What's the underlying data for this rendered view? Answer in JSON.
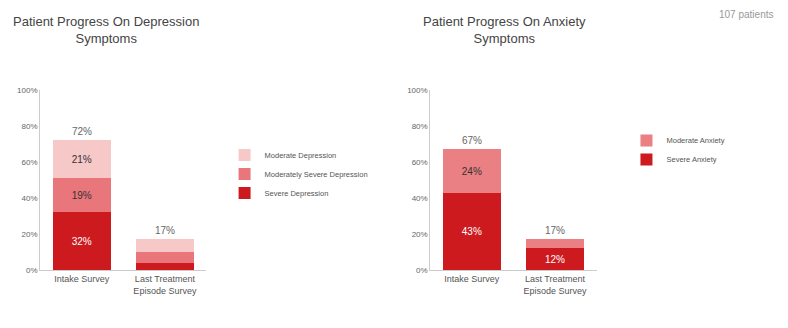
{
  "annotation": "107 patients",
  "chart_data": [
    {
      "type": "bar",
      "title": "Patient Progress On Depression Symptoms",
      "categories": [
        "Intake Survey",
        "Last Treatment Episode Survey"
      ],
      "series": [
        {
          "name": "Severe Depression",
          "color": "#cc1a1f",
          "values": [
            32,
            4
          ],
          "value_labels": [
            "32%",
            null
          ]
        },
        {
          "name": "Moderately Severe Depression",
          "color": "#e8767b",
          "values": [
            19,
            6
          ],
          "value_labels": [
            "19%",
            null
          ]
        },
        {
          "name": "Moderate Depression",
          "color": "#f6c9c8",
          "values": [
            21,
            7
          ],
          "value_labels": [
            "21%",
            null
          ]
        }
      ],
      "totals": [
        72,
        17
      ],
      "total_labels": [
        "72%",
        "17%"
      ],
      "stacked": true,
      "data_labels": true,
      "legend": "right",
      "grid": false,
      "ylim": [
        0,
        100
      ],
      "yticks": [
        {
          "value": 0,
          "label": "0%"
        },
        {
          "value": 20,
          "label": "20%"
        },
        {
          "value": 40,
          "label": "40%"
        },
        {
          "value": 60,
          "label": "60%"
        },
        {
          "value": 80,
          "label": "80%"
        },
        {
          "value": 100,
          "label": "100%"
        }
      ]
    },
    {
      "type": "bar",
      "title": "Patient Progress On Anxiety Symptoms",
      "categories": [
        "Intake Survey",
        "Last Treatment Episode Survey"
      ],
      "series": [
        {
          "name": "Severe Anxiety",
          "color": "#cc1a1f",
          "values": [
            43,
            12
          ],
          "value_labels": [
            "43%",
            "12%"
          ]
        },
        {
          "name": "Moderate Anxiety",
          "color": "#ea7f84",
          "values": [
            24,
            5
          ],
          "value_labels": [
            "24%",
            null
          ]
        }
      ],
      "totals": [
        67,
        17
      ],
      "total_labels": [
        "67%",
        "17%"
      ],
      "stacked": true,
      "data_labels": true,
      "legend": "right",
      "grid": false,
      "ylim": [
        0,
        100
      ],
      "yticks": [
        {
          "value": 0,
          "label": "0%"
        },
        {
          "value": 20,
          "label": "20%"
        },
        {
          "value": 40,
          "label": "40%"
        },
        {
          "value": 60,
          "label": "60%"
        },
        {
          "value": 80,
          "label": "80%"
        },
        {
          "value": 100,
          "label": "100%"
        }
      ]
    }
  ]
}
